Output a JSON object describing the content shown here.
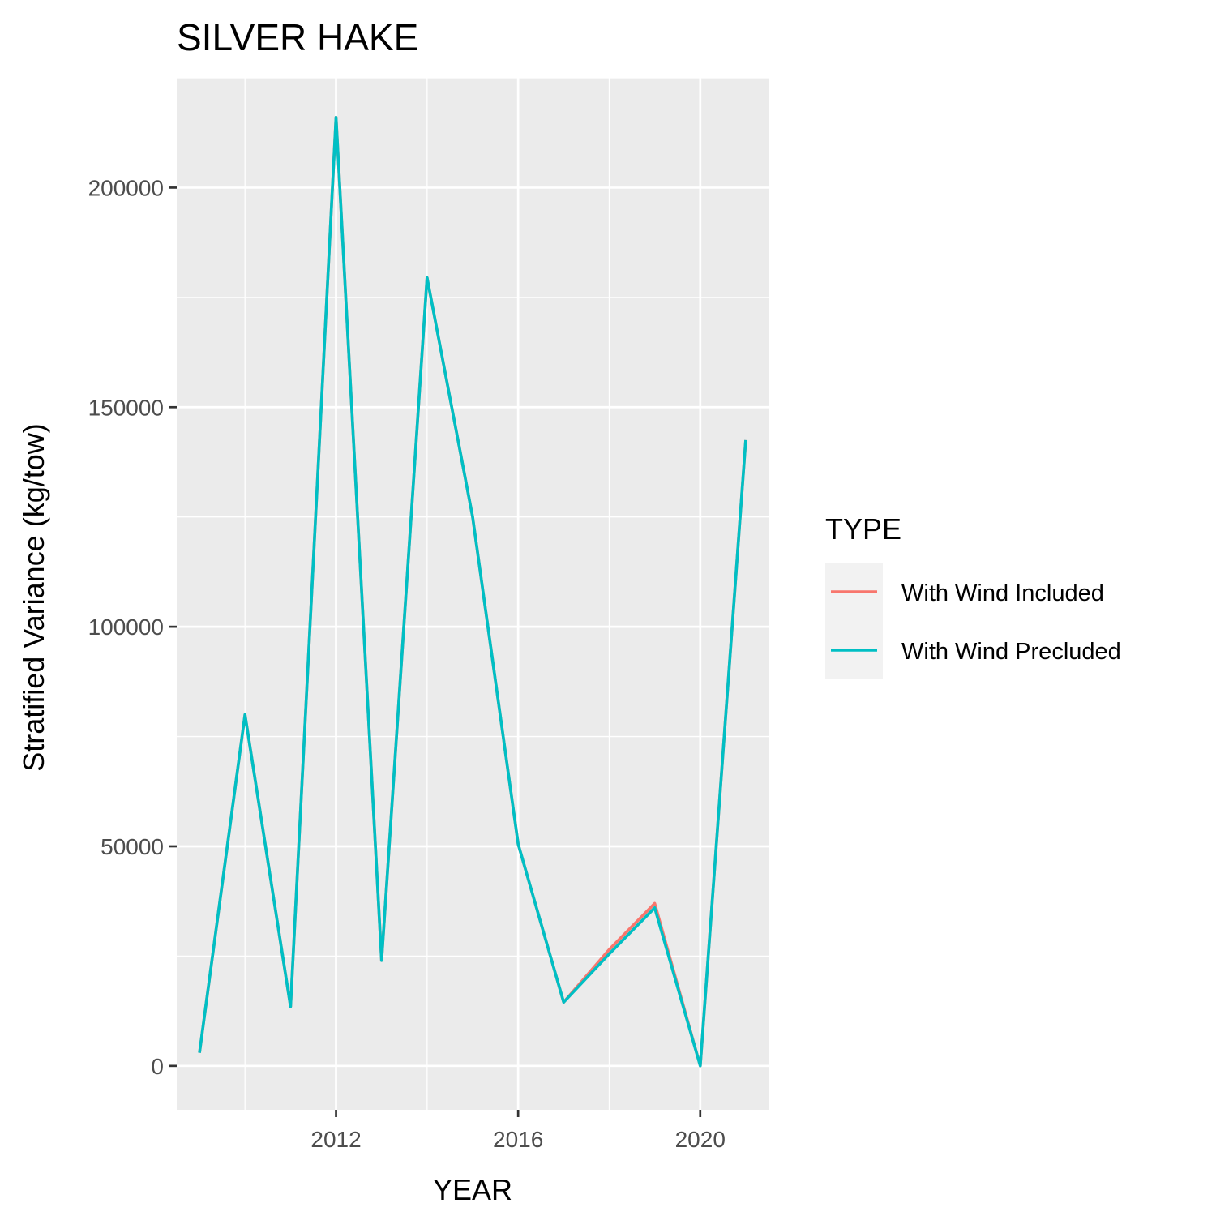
{
  "chart_data": {
    "type": "line",
    "title": "SILVER HAKE",
    "xlabel": "YEAR",
    "ylabel": "Stratified Variance (kg/tow)",
    "xlim": [
      2008.5,
      2021.5
    ],
    "ylim": [
      -10000,
      225000
    ],
    "x_ticks": [
      2012,
      2016,
      2020
    ],
    "y_ticks": [
      0,
      50000,
      100000,
      150000,
      200000
    ],
    "y_tick_labels": [
      "0",
      "50000",
      "100000",
      "150000",
      "200000"
    ],
    "x_tick_labels": [
      "2012",
      "2016",
      "2020"
    ],
    "grid": true,
    "legend": {
      "title": "TYPE",
      "placement": "right"
    },
    "x": [
      2009,
      2010,
      2011,
      2012,
      2013,
      2014,
      2015,
      2016,
      2017,
      2018,
      2019,
      2020,
      2021
    ],
    "series": [
      {
        "name": "With Wind Included",
        "color": "#F8766D",
        "values": [
          3000,
          80000,
          13500,
          216000,
          24000,
          179500,
          125000,
          50500,
          14500,
          26500,
          37000,
          0,
          142500
        ]
      },
      {
        "name": "With Wind Precluded",
        "color": "#00BFC4",
        "values": [
          3000,
          80000,
          13500,
          216000,
          24000,
          179500,
          125000,
          50500,
          14500,
          25500,
          36000,
          0,
          142500
        ]
      }
    ]
  }
}
